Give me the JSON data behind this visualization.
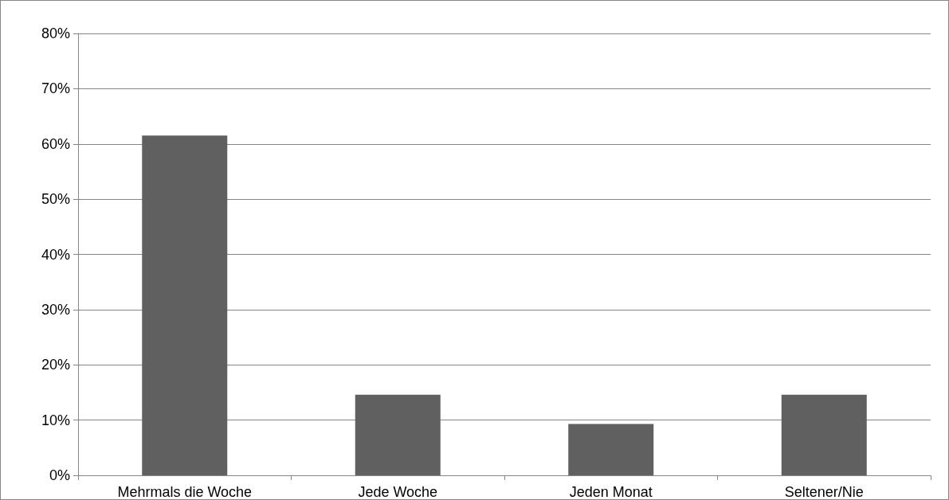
{
  "chart_data": {
    "type": "bar",
    "categories": [
      "Mehrmals die Woche",
      "Jede Woche",
      "Jeden Monat",
      "Seltener/Nie"
    ],
    "values": [
      61.5,
      14.6,
      9.3,
      14.6
    ],
    "color": "#606060",
    "ylim": [
      0,
      80
    ],
    "yticks": [
      {
        "value": 0,
        "label": "0%"
      },
      {
        "value": 10,
        "label": "10%"
      },
      {
        "value": 20,
        "label": "20%"
      },
      {
        "value": 30,
        "label": "30%"
      },
      {
        "value": 40,
        "label": "40%"
      },
      {
        "value": 50,
        "label": "50%"
      },
      {
        "value": 60,
        "label": "60%"
      },
      {
        "value": 70,
        "label": "70%"
      },
      {
        "value": 80,
        "label": "80%"
      }
    ],
    "grid": "y"
  }
}
